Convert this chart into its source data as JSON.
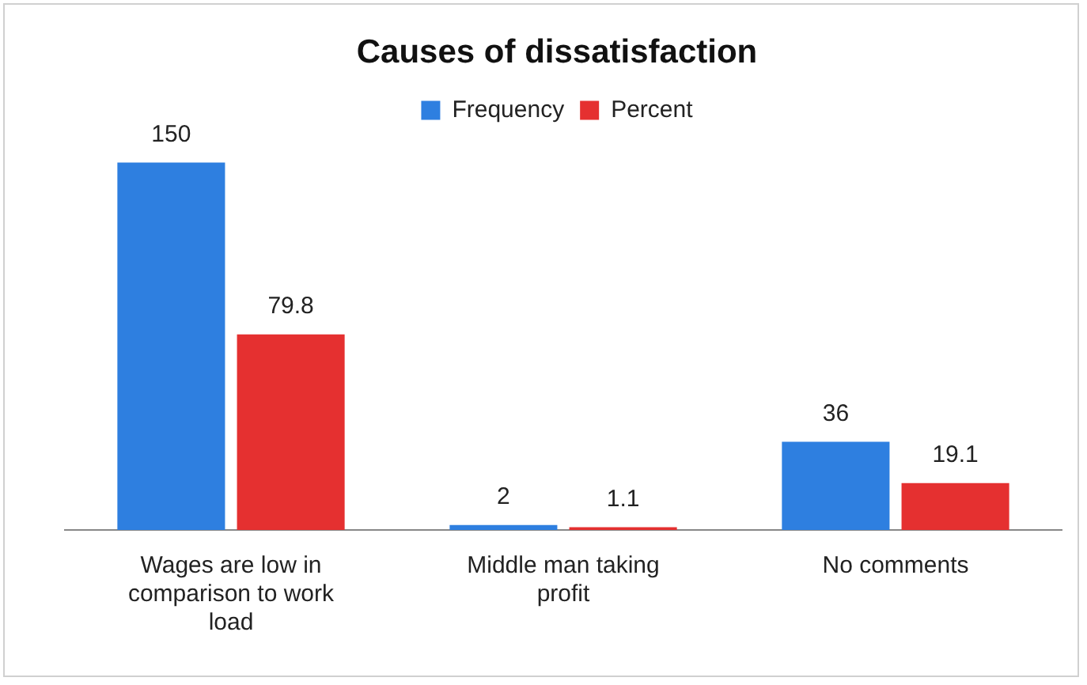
{
  "chart_data": {
    "type": "bar",
    "title": "Causes of dissatisfaction",
    "categories": [
      "Wages are low in comparison to work load",
      "Middle man taking profit",
      "No comments"
    ],
    "series": [
      {
        "name": "Frequency",
        "color": "#2e7fe0",
        "values": [
          150,
          2,
          36
        ]
      },
      {
        "name": "Percent",
        "color": "#e53030",
        "values": [
          79.8,
          1.1,
          19.1
        ]
      }
    ],
    "data_labels": true,
    "legend": "top",
    "grid": false
  }
}
